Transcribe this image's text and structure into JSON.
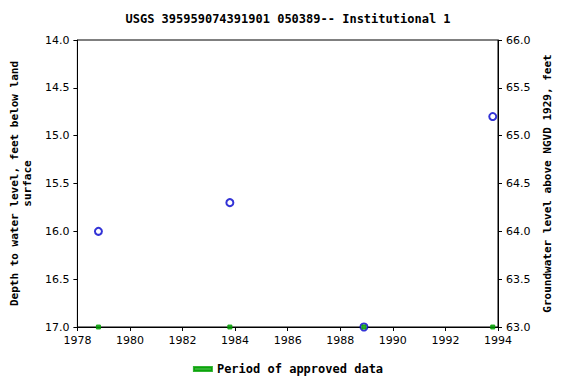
{
  "chart_data": {
    "type": "scatter",
    "title": "USGS 395959074391901 050389-- Institutional 1",
    "x_label": "",
    "y_label": "Depth to water level, feet below land\nsurface",
    "y2_label": "Groundwater level above NGVD 1929, feet",
    "x": [
      1978.8,
      1983.8,
      1988.9,
      1993.8
    ],
    "series": [
      {
        "color": "#0000cc",
        "marker": "circle-open",
        "values": [
          16.0,
          15.7,
          17.0,
          14.8
        ]
      },
      {
        "name": "Period of approved data",
        "color": "#00a000",
        "marker": "square",
        "values": [
          17.0,
          17.0,
          17.0,
          17.0
        ]
      }
    ],
    "xlim": [
      1978,
      1994
    ],
    "xticks": [
      1978,
      1980,
      1982,
      1984,
      1986,
      1988,
      1990,
      1992,
      1994
    ],
    "ylim": [
      17,
      14
    ],
    "yticks": [
      {
        "value": 14,
        "label": "14.0"
      },
      {
        "value": 14.5,
        "label": "14.5"
      },
      {
        "value": 15,
        "label": "15.0"
      },
      {
        "value": 15.5,
        "label": "15.5"
      },
      {
        "value": 16,
        "label": "16.0"
      },
      {
        "value": 16.5,
        "label": "16.5"
      },
      {
        "value": 17,
        "label": "17.0"
      }
    ],
    "y2lim": [
      63,
      66
    ],
    "y2ticks": [
      {
        "value": 63,
        "label": "63.0"
      },
      {
        "value": 63.5,
        "label": "63.5"
      },
      {
        "value": 64,
        "label": "64.0"
      },
      {
        "value": 64.5,
        "label": "64.5"
      },
      {
        "value": 65,
        "label": "65.0"
      },
      {
        "value": 65.5,
        "label": "65.5"
      },
      {
        "value": 66,
        "label": "66.0"
      }
    ],
    "grid": false,
    "legend": "bottom"
  }
}
